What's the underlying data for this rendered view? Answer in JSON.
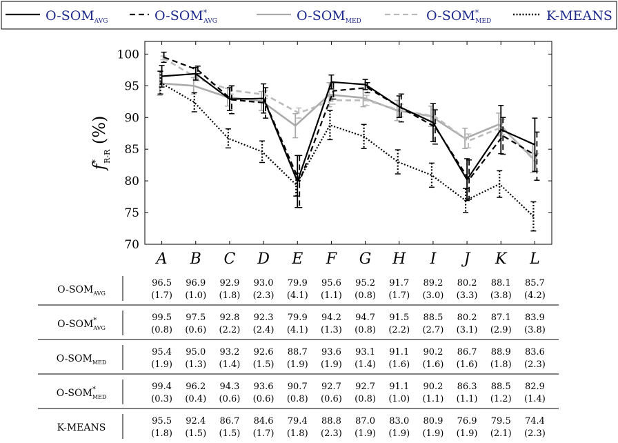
{
  "chart_data": {
    "type": "line",
    "categories": [
      "A",
      "B",
      "C",
      "D",
      "E",
      "F",
      "G",
      "H",
      "I",
      "J",
      "K",
      "L"
    ],
    "ylabel": "f*R-R (%)",
    "ylim": [
      70,
      102
    ],
    "yticks": [
      70,
      75,
      80,
      85,
      90,
      95,
      100
    ],
    "legend_position": "top",
    "series": [
      {
        "key": "avg",
        "name_main": "O-SOM",
        "name_sup": "",
        "name_sub": "AVG",
        "table_sub": "AVG",
        "color": "#000000",
        "dash": "solid",
        "values": [
          96.5,
          96.9,
          92.9,
          93.0,
          79.9,
          95.6,
          95.2,
          91.7,
          89.2,
          80.2,
          88.1,
          85.7
        ],
        "std": [
          1.7,
          1.0,
          1.8,
          2.3,
          4.1,
          1.1,
          0.8,
          1.7,
          3.0,
          3.3,
          3.8,
          4.2
        ],
        "values_text": [
          "96.5",
          "96.9",
          "92.9",
          "93.0",
          "79.9",
          "95.6",
          "95.2",
          "91.7",
          "89.2",
          "80.2",
          "88.1",
          "85.7"
        ],
        "std_text": [
          "(1.7)",
          "(1.0)",
          "(1.8)",
          "(2.3)",
          "(4.1)",
          "(1.1)",
          "(0.8)",
          "(1.7)",
          "(3.0)",
          "(3.3)",
          "(3.8)",
          "(4.2)"
        ]
      },
      {
        "key": "avgs",
        "name_main": "O-SOM",
        "name_sup": "*",
        "name_sub": "AVG",
        "table_sub": "AVG",
        "color": "#000000",
        "dash": "dashed",
        "values": [
          99.5,
          97.5,
          92.8,
          92.3,
          79.9,
          94.2,
          94.7,
          91.5,
          88.5,
          80.2,
          87.1,
          83.9
        ],
        "std": [
          0.8,
          0.6,
          2.2,
          2.4,
          4.1,
          1.3,
          0.8,
          2.2,
          2.7,
          3.1,
          2.9,
          3.8
        ],
        "values_text": [
          "99.5",
          "97.5",
          "92.8",
          "92.3",
          "79.9",
          "94.2",
          "94.7",
          "91.5",
          "88.5",
          "80.2",
          "87.1",
          "83.9"
        ],
        "std_text": [
          "(0.8)",
          "(0.6)",
          "(2.2)",
          "(2.4)",
          "(4.1)",
          "(1.3)",
          "(0.8)",
          "(2.2)",
          "(2.7)",
          "(3.1)",
          "(2.9)",
          "(3.8)"
        ]
      },
      {
        "key": "med",
        "name_main": "O-SOM",
        "name_sup": "",
        "name_sub": "MED",
        "table_sub": "MED",
        "color": "#aaaaaa",
        "dash": "solid",
        "values": [
          95.4,
          95.0,
          93.2,
          92.6,
          88.7,
          93.6,
          93.1,
          91.1,
          90.2,
          86.7,
          88.9,
          83.6
        ],
        "std": [
          1.9,
          1.3,
          1.4,
          1.5,
          1.9,
          1.9,
          1.4,
          1.6,
          1.6,
          1.6,
          1.8,
          2.3
        ],
        "values_text": [
          "95.4",
          "95.0",
          "93.2",
          "92.6",
          "88.7",
          "93.6",
          "93.1",
          "91.1",
          "90.2",
          "86.7",
          "88.9",
          "83.6"
        ],
        "std_text": [
          "(1.9)",
          "(1.3)",
          "(1.4)",
          "(1.5)",
          "(1.9)",
          "(1.9)",
          "(1.4)",
          "(1.6)",
          "(1.6)",
          "(1.6)",
          "(1.8)",
          "(2.3)"
        ]
      },
      {
        "key": "meds",
        "name_main": "O-SOM",
        "name_sup": "*",
        "name_sub": "MED",
        "table_sub": "MED",
        "color": "#bbbbbb",
        "dash": "dashed",
        "values": [
          99.4,
          96.2,
          94.3,
          93.6,
          90.7,
          92.7,
          92.7,
          91.1,
          90.2,
          86.3,
          88.5,
          82.9
        ],
        "std": [
          0.3,
          0.4,
          0.6,
          0.6,
          0.8,
          0.6,
          0.8,
          1.0,
          1.1,
          1.1,
          1.2,
          1.4
        ],
        "values_text": [
          "99.4",
          "96.2",
          "94.3",
          "93.6",
          "90.7",
          "92.7",
          "92.7",
          "91.1",
          "90.2",
          "86.3",
          "88.5",
          "82.9"
        ],
        "std_text": [
          "(0.3)",
          "(0.4)",
          "(0.6)",
          "(0.6)",
          "(0.8)",
          "(0.6)",
          "(0.8)",
          "(1.0)",
          "(1.1)",
          "(1.1)",
          "(1.2)",
          "(1.4)"
        ]
      },
      {
        "key": "km",
        "name_main": "K-MEANS",
        "name_sup": "",
        "name_sub": "",
        "table_sub": "",
        "color": "#000000",
        "dash": "dotted",
        "values": [
          95.5,
          92.4,
          86.7,
          84.6,
          79.4,
          88.8,
          87.0,
          83.0,
          80.9,
          76.9,
          79.5,
          74.4
        ],
        "std": [
          1.8,
          1.5,
          1.5,
          1.7,
          1.8,
          2.3,
          1.9,
          1.9,
          1.9,
          1.9,
          2.1,
          2.3
        ],
        "values_text": [
          "95.5",
          "92.4",
          "86.7",
          "84.6",
          "79.4",
          "88.8",
          "87.0",
          "83.0",
          "80.9",
          "76.9",
          "79.5",
          "74.4"
        ],
        "std_text": [
          "(1.8)",
          "(1.5)",
          "(1.5)",
          "(1.7)",
          "(1.8)",
          "(2.3)",
          "(1.9)",
          "(1.9)",
          "(1.9)",
          "(1.9)",
          "(2.1)",
          "(2.3)"
        ]
      }
    ]
  }
}
